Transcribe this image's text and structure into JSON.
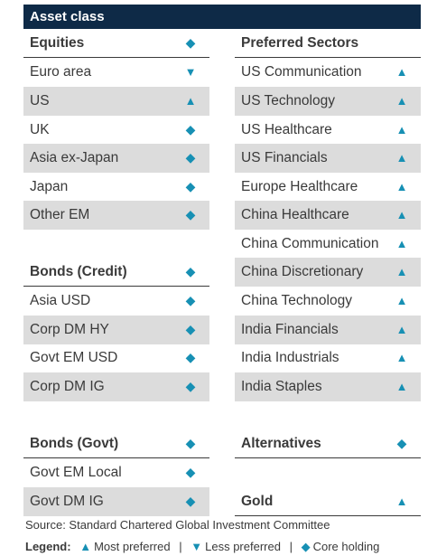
{
  "header": {
    "title": "Asset class"
  },
  "symbols": {
    "most_preferred": "▲",
    "less_preferred": "▼",
    "core_holding": "◆"
  },
  "left": {
    "equities": {
      "title": "Equities",
      "status": "◆",
      "items": [
        {
          "label": "Euro area",
          "status": "▼"
        },
        {
          "label": "US",
          "status": "▲"
        },
        {
          "label": "UK",
          "status": "◆"
        },
        {
          "label": "Asia ex-Japan",
          "status": "◆"
        },
        {
          "label": "Japan",
          "status": "◆"
        },
        {
          "label": "Other EM",
          "status": "◆"
        }
      ]
    },
    "bonds_credit": {
      "title": "Bonds (Credit)",
      "status": "◆",
      "items": [
        {
          "label": "Asia USD",
          "status": "◆"
        },
        {
          "label": "Corp DM HY",
          "status": "◆"
        },
        {
          "label": "Govt EM USD",
          "status": "◆"
        },
        {
          "label": "Corp DM IG",
          "status": "◆"
        }
      ]
    },
    "bonds_govt": {
      "title": "Bonds (Govt)",
      "status": "◆",
      "items": [
        {
          "label": "Govt EM Local",
          "status": "◆"
        },
        {
          "label": "Govt DM IG",
          "status": "◆"
        }
      ]
    }
  },
  "right": {
    "preferred_sectors": {
      "title": "Preferred Sectors",
      "items": [
        {
          "label": "US Communication",
          "status": "▲"
        },
        {
          "label": "US Technology",
          "status": "▲"
        },
        {
          "label": "US Healthcare",
          "status": "▲"
        },
        {
          "label": "US Financials",
          "status": "▲"
        },
        {
          "label": "Europe Healthcare",
          "status": "▲"
        },
        {
          "label": "China Healthcare",
          "status": "▲"
        },
        {
          "label": "China Communication",
          "status": "▲"
        },
        {
          "label": "China Discretionary",
          "status": "▲"
        },
        {
          "label": "China Technology",
          "status": "▲"
        },
        {
          "label": "India Financials",
          "status": "▲"
        },
        {
          "label": "India Industrials",
          "status": "▲"
        },
        {
          "label": "India Staples",
          "status": "▲"
        }
      ]
    },
    "alternatives": {
      "title": "Alternatives",
      "status": "◆"
    },
    "gold": {
      "title": "Gold",
      "status": "▲"
    }
  },
  "source": "Source: Standard Chartered Global Investment Committee",
  "legend": {
    "title": "Legend:",
    "most_preferred": "Most preferred",
    "less_preferred": "Less preferred",
    "core_holding": "Core holding",
    "separator": "|"
  },
  "colors": {
    "header_bg": "#0e2a47",
    "accent": "#1790b4",
    "shade": "#dcdcdc"
  }
}
